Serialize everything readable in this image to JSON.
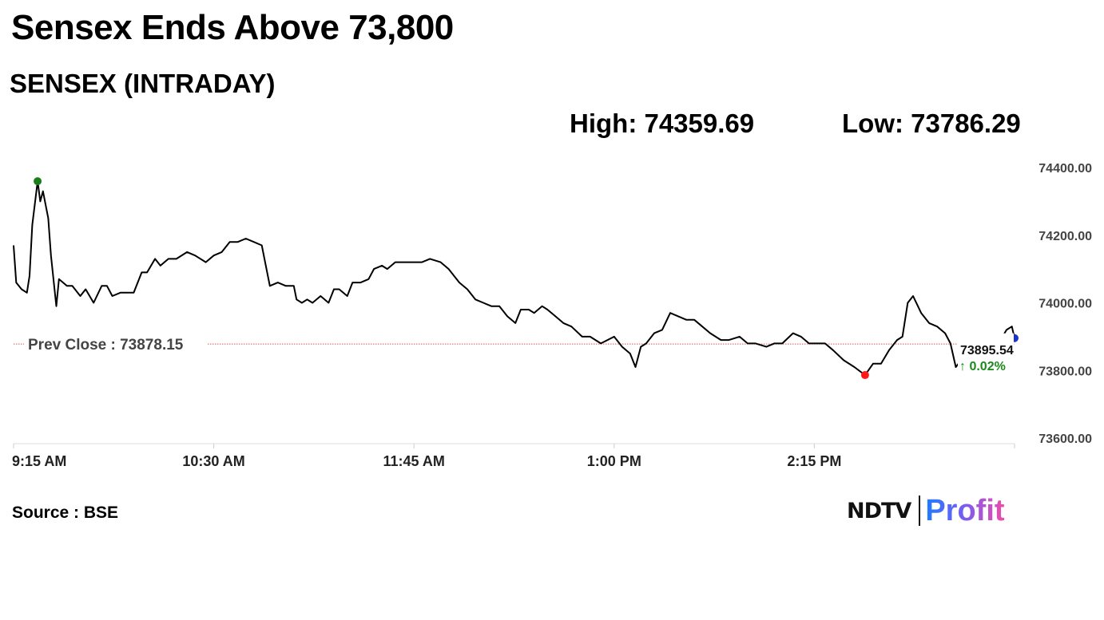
{
  "header": {
    "headline": "Sensex Ends Above 73,800",
    "subhead": "SENSEX (INTRADAY)",
    "high_text": "High: 74359.69",
    "low_text": "Low: 73786.29"
  },
  "footer": {
    "source_text": "Source : BSE",
    "logo_ndtv": "NDTV",
    "logo_profit": "Profit"
  },
  "colors": {
    "line": "#000000",
    "prev_close": "#d9534f",
    "high_marker": "#1a7f1a",
    "low_marker": "#ff1a1a",
    "last_marker": "#1a33cc",
    "change_positive": "#1a8a1a"
  },
  "chart_data": {
    "type": "line",
    "title": "SENSEX (INTRADAY)",
    "xlabel": "",
    "ylabel": "",
    "ylim": [
      73600,
      74400
    ],
    "yticks": [
      74400,
      74200,
      74000,
      73800,
      73600
    ],
    "ytick_labels": [
      "74400.00",
      "74200.00",
      "74000.00",
      "73800.00",
      "73600.00"
    ],
    "xlim": [
      "9:15 AM",
      "3:30 PM"
    ],
    "xticks": [
      "9:15 AM",
      "10:30 AM",
      "11:45 AM",
      "1:00 PM",
      "2:15 PM"
    ],
    "grid": false,
    "prev_close": 73878.15,
    "prev_close_label": "Prev Close : 73878.15",
    "high": {
      "time": "9:24 AM",
      "value": 74359.69
    },
    "low": {
      "time": "2:34 PM",
      "value": 73786.29
    },
    "last": {
      "time": "3:30 PM",
      "value": 73895.54
    },
    "last_label": "73895.54",
    "change_label": "↑ 0.02%",
    "series": [
      {
        "values": [
          [
            "9:15 AM",
            74170
          ],
          [
            "9:16 AM",
            74060
          ],
          [
            "9:18 AM",
            74040
          ],
          [
            "9:20 AM",
            74030
          ],
          [
            "9:21 AM",
            74080
          ],
          [
            "9:22 AM",
            74230
          ],
          [
            "9:24 AM",
            74359.69
          ],
          [
            "9:25 AM",
            74300
          ],
          [
            "9:26 AM",
            74330
          ],
          [
            "9:28 AM",
            74250
          ],
          [
            "9:29 AM",
            74140
          ],
          [
            "9:31 AM",
            73990
          ],
          [
            "9:32 AM",
            74070
          ],
          [
            "9:35 AM",
            74050
          ],
          [
            "9:37 AM",
            74050
          ],
          [
            "9:40 AM",
            74020
          ],
          [
            "9:42 AM",
            74040
          ],
          [
            "9:45 AM",
            74000
          ],
          [
            "9:48 AM",
            74050
          ],
          [
            "9:50 AM",
            74050
          ],
          [
            "9:52 AM",
            74020
          ],
          [
            "9:55 AM",
            74030
          ],
          [
            "10:00 AM",
            74030
          ],
          [
            "10:03 AM",
            74090
          ],
          [
            "10:05 AM",
            74090
          ],
          [
            "10:08 AM",
            74130
          ],
          [
            "10:10 AM",
            74110
          ],
          [
            "10:13 AM",
            74130
          ],
          [
            "10:16 AM",
            74130
          ],
          [
            "10:20 AM",
            74150
          ],
          [
            "10:23 AM",
            74140
          ],
          [
            "10:27 AM",
            74120
          ],
          [
            "10:30 AM",
            74140
          ],
          [
            "10:33 AM",
            74150
          ],
          [
            "10:36 AM",
            74180
          ],
          [
            "10:39 AM",
            74180
          ],
          [
            "10:42 AM",
            74190
          ],
          [
            "10:45 AM",
            74180
          ],
          [
            "10:48 AM",
            74170
          ],
          [
            "10:51 AM",
            74050
          ],
          [
            "10:54 AM",
            74060
          ],
          [
            "10:57 AM",
            74050
          ],
          [
            "11:00 AM",
            74050
          ],
          [
            "11:01 AM",
            74010
          ],
          [
            "11:03 AM",
            74000
          ],
          [
            "11:05 AM",
            74010
          ],
          [
            "11:07 AM",
            74000
          ],
          [
            "11:10 AM",
            74020
          ],
          [
            "11:13 AM",
            74000
          ],
          [
            "11:15 AM",
            74040
          ],
          [
            "11:17 AM",
            74040
          ],
          [
            "11:20 AM",
            74020
          ],
          [
            "11:22 AM",
            74060
          ],
          [
            "11:25 AM",
            74060
          ],
          [
            "11:28 AM",
            74070
          ],
          [
            "11:30 AM",
            74100
          ],
          [
            "11:33 AM",
            74110
          ],
          [
            "11:35 AM",
            74100
          ],
          [
            "11:38 AM",
            74120
          ],
          [
            "11:41 AM",
            74120
          ],
          [
            "11:45 AM",
            74120
          ],
          [
            "11:48 AM",
            74120
          ],
          [
            "11:51 AM",
            74130
          ],
          [
            "11:55 AM",
            74120
          ],
          [
            "11:58 AM",
            74100
          ],
          [
            "12:00 PM",
            74080
          ],
          [
            "12:02 PM",
            74060
          ],
          [
            "12:05 PM",
            74040
          ],
          [
            "12:08 PM",
            74010
          ],
          [
            "12:11 PM",
            74000
          ],
          [
            "12:14 PM",
            73990
          ],
          [
            "12:17 PM",
            73990
          ],
          [
            "12:20 PM",
            73960
          ],
          [
            "12:23 PM",
            73940
          ],
          [
            "12:25 PM",
            73980
          ],
          [
            "12:28 PM",
            73980
          ],
          [
            "12:30 PM",
            73970
          ],
          [
            "12:33 PM",
            73990
          ],
          [
            "12:35 PM",
            73980
          ],
          [
            "12:38 PM",
            73960
          ],
          [
            "12:41 PM",
            73940
          ],
          [
            "12:44 PM",
            73930
          ],
          [
            "12:48 PM",
            73900
          ],
          [
            "12:51 PM",
            73900
          ],
          [
            "12:55 PM",
            73880
          ],
          [
            "1:00 PM",
            73900
          ],
          [
            "1:03 PM",
            73870
          ],
          [
            "1:06 PM",
            73850
          ],
          [
            "1:08 PM",
            73810
          ],
          [
            "1:10 PM",
            73870
          ],
          [
            "1:12 PM",
            73880
          ],
          [
            "1:15 PM",
            73910
          ],
          [
            "1:18 PM",
            73920
          ],
          [
            "1:21 PM",
            73970
          ],
          [
            "1:24 PM",
            73960
          ],
          [
            "1:27 PM",
            73950
          ],
          [
            "1:30 PM",
            73950
          ],
          [
            "1:33 PM",
            73930
          ],
          [
            "1:36 PM",
            73910
          ],
          [
            "1:40 PM",
            73890
          ],
          [
            "1:43 PM",
            73890
          ],
          [
            "1:47 PM",
            73900
          ],
          [
            "1:50 PM",
            73880
          ],
          [
            "1:53 PM",
            73880
          ],
          [
            "1:57 PM",
            73870
          ],
          [
            "2:00 PM",
            73880
          ],
          [
            "2:03 PM",
            73880
          ],
          [
            "2:07 PM",
            73910
          ],
          [
            "2:10 PM",
            73900
          ],
          [
            "2:13 PM",
            73880
          ],
          [
            "2:16 PM",
            73880
          ],
          [
            "2:19 PM",
            73880
          ],
          [
            "2:22 PM",
            73860
          ],
          [
            "2:26 PM",
            73830
          ],
          [
            "2:30 PM",
            73810
          ],
          [
            "2:34 PM",
            73786.29
          ],
          [
            "2:37 PM",
            73820
          ],
          [
            "2:40 PM",
            73820
          ],
          [
            "2:43 PM",
            73860
          ],
          [
            "2:46 PM",
            73890
          ],
          [
            "2:48 PM",
            73900
          ],
          [
            "2:50 PM",
            74000
          ],
          [
            "2:52 PM",
            74020
          ],
          [
            "2:55 PM",
            73970
          ],
          [
            "2:58 PM",
            73940
          ],
          [
            "3:01 PM",
            73930
          ],
          [
            "3:04 PM",
            73910
          ],
          [
            "3:06 PM",
            73880
          ],
          [
            "3:08 PM",
            73810
          ],
          [
            "3:10 PM",
            73830
          ],
          [
            "3:12 PM",
            73850
          ],
          [
            "3:14 PM",
            73880
          ],
          [
            "3:16 PM",
            73880
          ],
          [
            "3:18 PM",
            73870
          ],
          [
            "3:21 PM",
            73880
          ],
          [
            "3:24 PM",
            73880
          ],
          [
            "3:27 PM",
            73920
          ],
          [
            "3:29 PM",
            73930
          ],
          [
            "3:30 PM",
            73895.54
          ]
        ]
      }
    ]
  }
}
